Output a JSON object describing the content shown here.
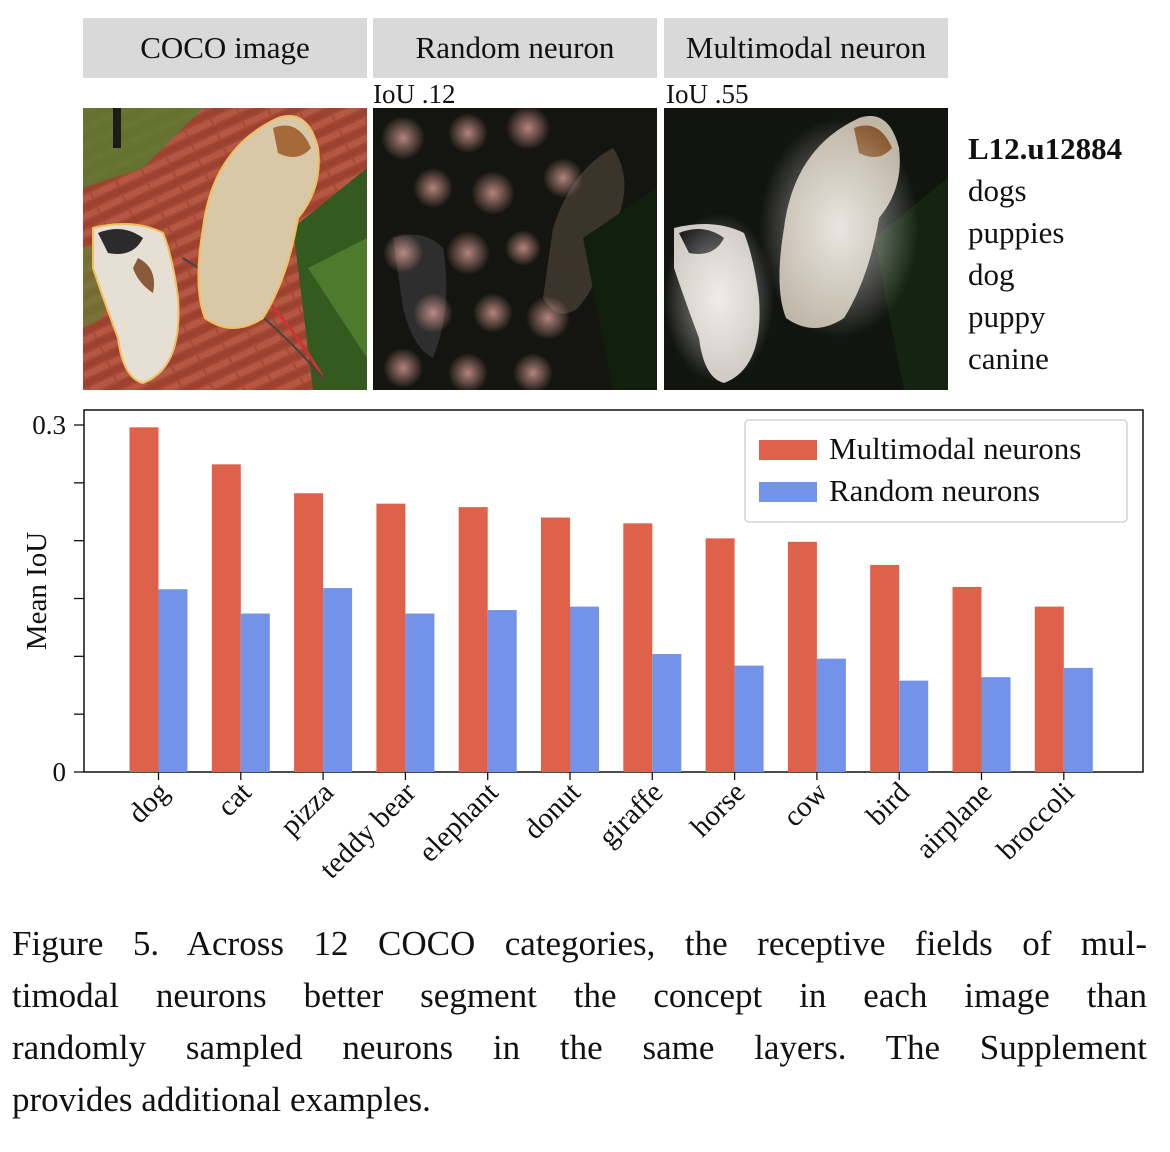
{
  "panels": {
    "coco": {
      "header": "COCO image"
    },
    "random": {
      "header": "Random neuron",
      "iou": "IoU .12"
    },
    "multimodal": {
      "header": "Multimodal neuron",
      "iou": "IoU .55"
    }
  },
  "neuron": {
    "id": "L12.u12884",
    "concepts": [
      "dogs",
      "puppies",
      "dog",
      "puppy",
      "canine"
    ]
  },
  "chart_data": {
    "type": "bar",
    "ylabel": "Mean IoU",
    "xlabel": "",
    "ylim": [
      0,
      0.3
    ],
    "yticks_labeled": [
      0,
      0.3
    ],
    "yticks_labels": [
      "0",
      "0.3"
    ],
    "yticks_minor": [
      0.05,
      0.1,
      0.15,
      0.2,
      0.25
    ],
    "grid": false,
    "legend_position": "top-right",
    "categories": [
      "dog",
      "cat",
      "pizza",
      "teddy bear",
      "elephant",
      "donut",
      "giraffe",
      "horse",
      "cow",
      "bird",
      "airplane",
      "broccoli"
    ],
    "series": [
      {
        "name": "Multimodal neurons",
        "color": "#e0614a",
        "values": [
          0.298,
          0.266,
          0.241,
          0.232,
          0.229,
          0.22,
          0.215,
          0.202,
          0.199,
          0.179,
          0.16,
          0.143
        ]
      },
      {
        "name": "Random neurons",
        "color": "#7393e8",
        "values": [
          0.158,
          0.137,
          0.159,
          0.137,
          0.14,
          0.143,
          0.102,
          0.092,
          0.098,
          0.079,
          0.082,
          0.09
        ]
      }
    ]
  },
  "caption": {
    "lines": [
      "Figure 5. Across 12 COCO categories, the receptive fields of mul-",
      "timodal neurons better segment the concept in each image than",
      "randomly sampled neurons in the same layers.  The Supplement",
      "provides additional examples."
    ]
  }
}
